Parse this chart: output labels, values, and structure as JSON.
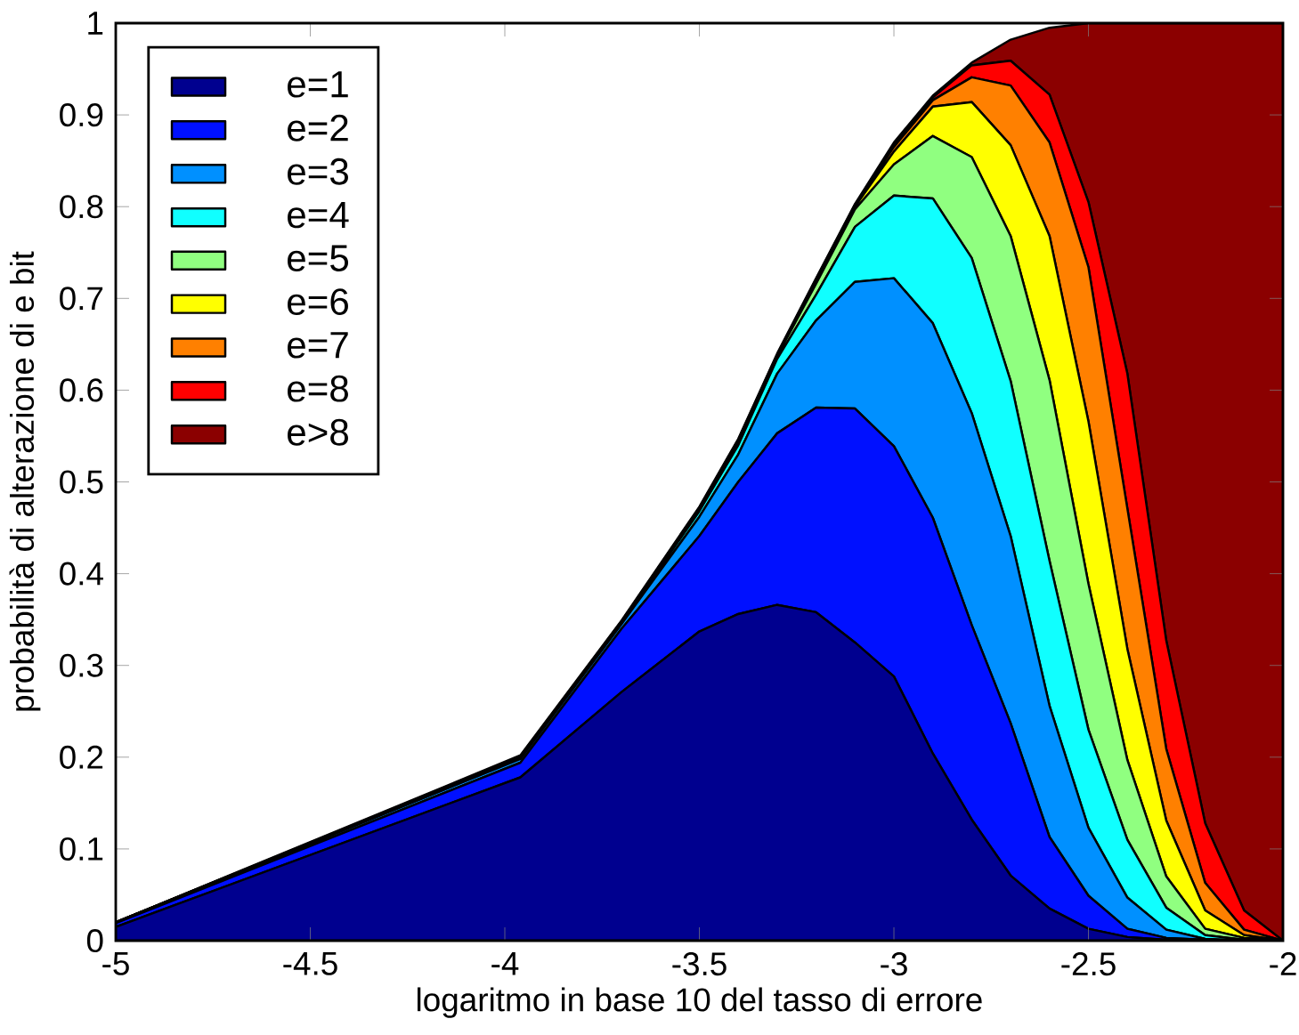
{
  "chart_data": {
    "type": "area",
    "stacked": true,
    "xlabel": "logaritmo in base 10 del tasso di errore",
    "ylabel": "probabilità di alterazione di e bit",
    "x": [
      -5,
      -3.96,
      -3.7,
      -3.5,
      -3.4,
      -3.3,
      -3.2,
      -3.1,
      -3.0,
      -2.9,
      -2.8,
      -2.7,
      -2.6,
      -2.5,
      -2.4,
      -2.3,
      -2.2,
      -2.1,
      -2.0
    ],
    "xlim": [
      -5,
      -2
    ],
    "xticks": [
      -5,
      -4.5,
      -4,
      -3.5,
      -3,
      -2.5,
      -2
    ],
    "ylim": [
      0,
      1
    ],
    "yticks": [
      0,
      0.1,
      0.2,
      0.3,
      0.4,
      0.5,
      0.6,
      0.7,
      0.8,
      0.9,
      1
    ],
    "legend": "top left",
    "series": [
      {
        "name": "e=1",
        "color": "#00008f",
        "values": [
          0.015,
          0.178,
          0.271,
          0.337,
          0.356,
          0.366,
          0.358,
          0.325,
          0.288,
          0.204,
          0.132,
          0.071,
          0.035,
          0.013,
          0.004,
          0.001,
          0,
          0,
          0
        ]
      },
      {
        "name": "e=2",
        "color": "#0010ff",
        "values": [
          0.004,
          0.016,
          0.069,
          0.104,
          0.144,
          0.187,
          0.223,
          0.255,
          0.251,
          0.257,
          0.212,
          0.166,
          0.078,
          0.036,
          0.009,
          0.002,
          0.001,
          0,
          0
        ]
      },
      {
        "name": "e=3",
        "color": "#0090ff",
        "values": [
          0.001,
          0.004,
          0.005,
          0.021,
          0.03,
          0.065,
          0.095,
          0.138,
          0.183,
          0.212,
          0.231,
          0.204,
          0.143,
          0.074,
          0.034,
          0.009,
          0.001,
          0,
          0
        ]
      },
      {
        "name": "e=4",
        "color": "#10ffff",
        "values": [
          0,
          0.001,
          0.001,
          0.006,
          0.01,
          0.016,
          0.028,
          0.06,
          0.09,
          0.136,
          0.169,
          0.169,
          0.158,
          0.107,
          0.063,
          0.024,
          0.004,
          0.001,
          0
        ]
      },
      {
        "name": "e=5",
        "color": "#90ff80",
        "values": [
          0,
          0.001,
          0.001,
          0.002,
          0.003,
          0.003,
          0.012,
          0.019,
          0.034,
          0.068,
          0.11,
          0.158,
          0.197,
          0.159,
          0.087,
          0.034,
          0.007,
          0.002,
          0
        ]
      },
      {
        "name": "e=6",
        "color": "#ffff00",
        "values": [
          0,
          0,
          0,
          0.001,
          0.001,
          0.001,
          0.003,
          0.003,
          0.014,
          0.032,
          0.06,
          0.099,
          0.157,
          0.177,
          0.121,
          0.061,
          0.02,
          0.003,
          0
        ]
      },
      {
        "name": "e=7",
        "color": "#ff8000",
        "values": [
          0,
          0,
          0.001,
          0,
          0.001,
          0,
          0.001,
          0.001,
          0.005,
          0.007,
          0.027,
          0.065,
          0.102,
          0.168,
          0.153,
          0.078,
          0.03,
          0.006,
          0
        ]
      },
      {
        "name": "e=8",
        "color": "#ff0000",
        "values": [
          0,
          0.001,
          0,
          0.001,
          0.001,
          0.001,
          0.001,
          0.001,
          0.003,
          0.003,
          0.013,
          0.027,
          0.052,
          0.071,
          0.147,
          0.118,
          0.065,
          0.021,
          0
        ]
      },
      {
        "name": "e>8",
        "color": "#8b0000",
        "values": [
          0,
          0.001,
          0.001,
          0.001,
          0.001,
          0.001,
          0.001,
          0.001,
          0.002,
          0.002,
          0.003,
          0.023,
          0.073,
          0.195,
          0.382,
          0.673,
          0.872,
          0.967,
          1.0
        ]
      }
    ]
  }
}
